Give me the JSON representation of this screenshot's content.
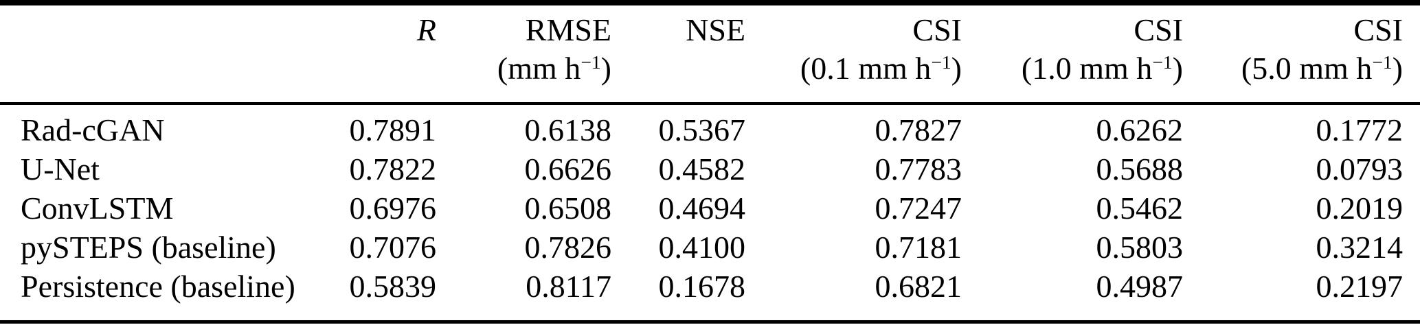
{
  "table": {
    "columns": [
      {
        "label": "",
        "unit_prefix": "",
        "unit_sup": "",
        "unit_suffix": ""
      },
      {
        "label": "R",
        "unit_prefix": "",
        "unit_sup": "",
        "unit_suffix": ""
      },
      {
        "label": "RMSE",
        "unit_prefix": "(mm h",
        "unit_sup": "−1",
        "unit_suffix": ")"
      },
      {
        "label": "NSE",
        "unit_prefix": "",
        "unit_sup": "",
        "unit_suffix": ""
      },
      {
        "label": "CSI",
        "unit_prefix": "(0.1 mm h",
        "unit_sup": "−1",
        "unit_suffix": ")"
      },
      {
        "label": "CSI",
        "unit_prefix": "(1.0 mm h",
        "unit_sup": "−1",
        "unit_suffix": ")"
      },
      {
        "label": "CSI",
        "unit_prefix": "(5.0 mm h",
        "unit_sup": "−1",
        "unit_suffix": ")"
      }
    ],
    "rows": [
      {
        "model": "Rad-cGAN",
        "values": [
          "0.7891",
          "0.6138",
          "0.5367",
          "0.7827",
          "0.6262",
          "0.1772"
        ]
      },
      {
        "model": "U-Net",
        "values": [
          "0.7822",
          "0.6626",
          "0.4582",
          "0.7783",
          "0.5688",
          "0.0793"
        ]
      },
      {
        "model": "ConvLSTM",
        "values": [
          "0.6976",
          "0.6508",
          "0.4694",
          "0.7247",
          "0.5462",
          "0.2019"
        ]
      },
      {
        "model": "pySTEPS (baseline)",
        "values": [
          "0.7076",
          "0.7826",
          "0.4100",
          "0.7181",
          "0.5803",
          "0.3214"
        ]
      },
      {
        "model": "Persistence (baseline)",
        "values": [
          "0.5839",
          "0.8117",
          "0.1678",
          "0.6821",
          "0.4987",
          "0.2197"
        ]
      }
    ],
    "colors": {
      "text": "#000000",
      "rule": "#000000",
      "background": "#ffffff"
    }
  }
}
